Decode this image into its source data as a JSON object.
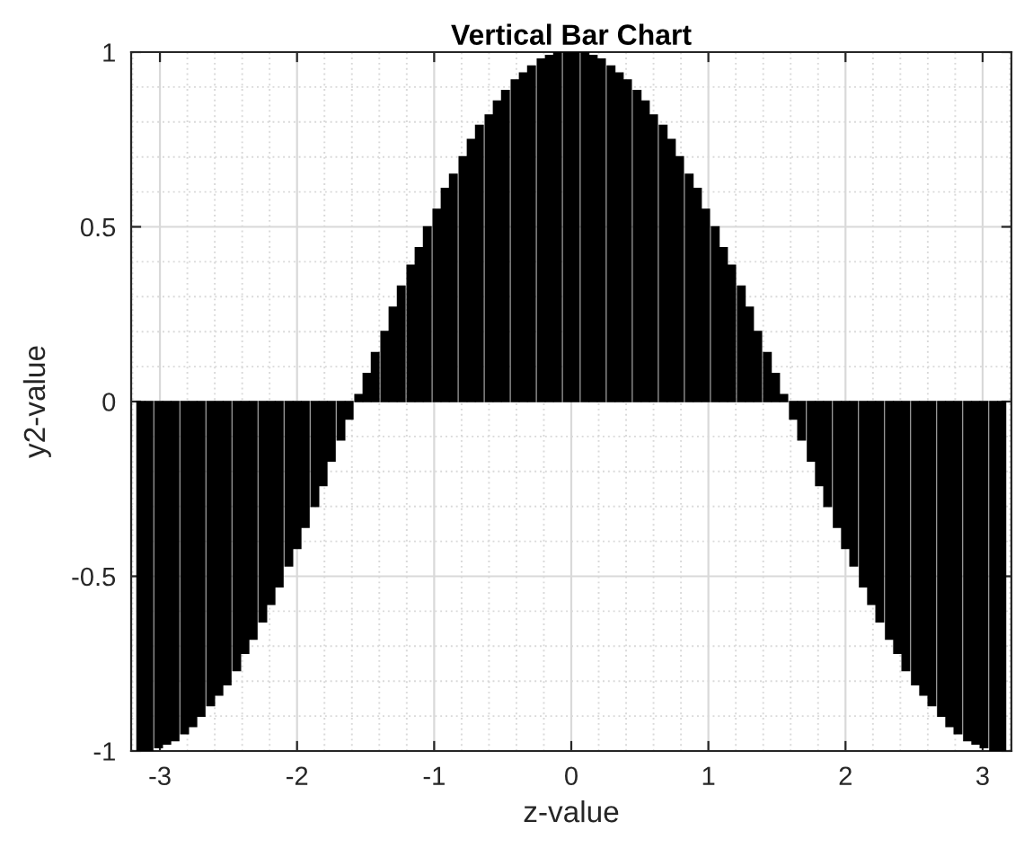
{
  "chart_data": {
    "type": "bar",
    "title": "Vertical Bar Chart",
    "xlabel": "z-value",
    "ylabel": "y2-value",
    "color": "#000000",
    "x": [
      -3.14,
      -3.08,
      -3.01,
      -2.95,
      -2.89,
      -2.82,
      -2.76,
      -2.7,
      -2.63,
      -2.57,
      -2.51,
      -2.44,
      -2.38,
      -2.32,
      -2.25,
      -2.19,
      -2.13,
      -2.06,
      -2.0,
      -1.94,
      -1.87,
      -1.81,
      -1.75,
      -1.68,
      -1.62,
      -1.55,
      -1.49,
      -1.43,
      -1.36,
      -1.3,
      -1.24,
      -1.17,
      -1.11,
      -1.05,
      -0.98,
      -0.92,
      -0.86,
      -0.79,
      -0.73,
      -0.67,
      -0.6,
      -0.54,
      -0.48,
      -0.41,
      -0.35,
      -0.29,
      -0.22,
      -0.16,
      -0.1,
      -0.03,
      0.03,
      0.1,
      0.16,
      0.22,
      0.29,
      0.35,
      0.41,
      0.48,
      0.54,
      0.6,
      0.67,
      0.73,
      0.79,
      0.86,
      0.92,
      0.98,
      1.05,
      1.11,
      1.17,
      1.24,
      1.3,
      1.36,
      1.43,
      1.49,
      1.55,
      1.62,
      1.68,
      1.75,
      1.81,
      1.87,
      1.94,
      2.0,
      2.06,
      2.13,
      2.19,
      2.25,
      2.32,
      2.38,
      2.44,
      2.51,
      2.57,
      2.63,
      2.7,
      2.76,
      2.82,
      2.89,
      2.95,
      3.01,
      3.08,
      3.14
    ],
    "values": [
      -1.0,
      -1.0,
      -0.99,
      -0.98,
      -0.97,
      -0.95,
      -0.93,
      -0.9,
      -0.87,
      -0.84,
      -0.81,
      -0.77,
      -0.72,
      -0.68,
      -0.63,
      -0.58,
      -0.53,
      -0.47,
      -0.42,
      -0.36,
      -0.3,
      -0.24,
      -0.17,
      -0.11,
      -0.05,
      0.02,
      0.08,
      0.14,
      0.2,
      0.27,
      0.33,
      0.39,
      0.44,
      0.5,
      0.55,
      0.61,
      0.65,
      0.7,
      0.75,
      0.79,
      0.82,
      0.86,
      0.89,
      0.92,
      0.94,
      0.96,
      0.98,
      0.99,
      1.0,
      1.0,
      1.0,
      1.0,
      0.99,
      0.98,
      0.96,
      0.94,
      0.92,
      0.89,
      0.86,
      0.82,
      0.79,
      0.75,
      0.7,
      0.65,
      0.61,
      0.55,
      0.5,
      0.44,
      0.39,
      0.33,
      0.27,
      0.2,
      0.14,
      0.08,
      0.02,
      -0.05,
      -0.11,
      -0.17,
      -0.24,
      -0.3,
      -0.36,
      -0.42,
      -0.47,
      -0.53,
      -0.58,
      -0.63,
      -0.68,
      -0.72,
      -0.77,
      -0.81,
      -0.84,
      -0.87,
      -0.9,
      -0.93,
      -0.95,
      -0.97,
      -0.98,
      -0.99,
      -1.0,
      -1.0
    ],
    "xlim": [
      -3.21,
      3.21
    ],
    "xticks": [
      -3,
      -2,
      -1,
      0,
      1,
      2,
      3
    ],
    "ylim": [
      -1,
      1
    ],
    "yticks": [
      -1,
      -0.5,
      0,
      0.5,
      1
    ],
    "grid": true
  }
}
